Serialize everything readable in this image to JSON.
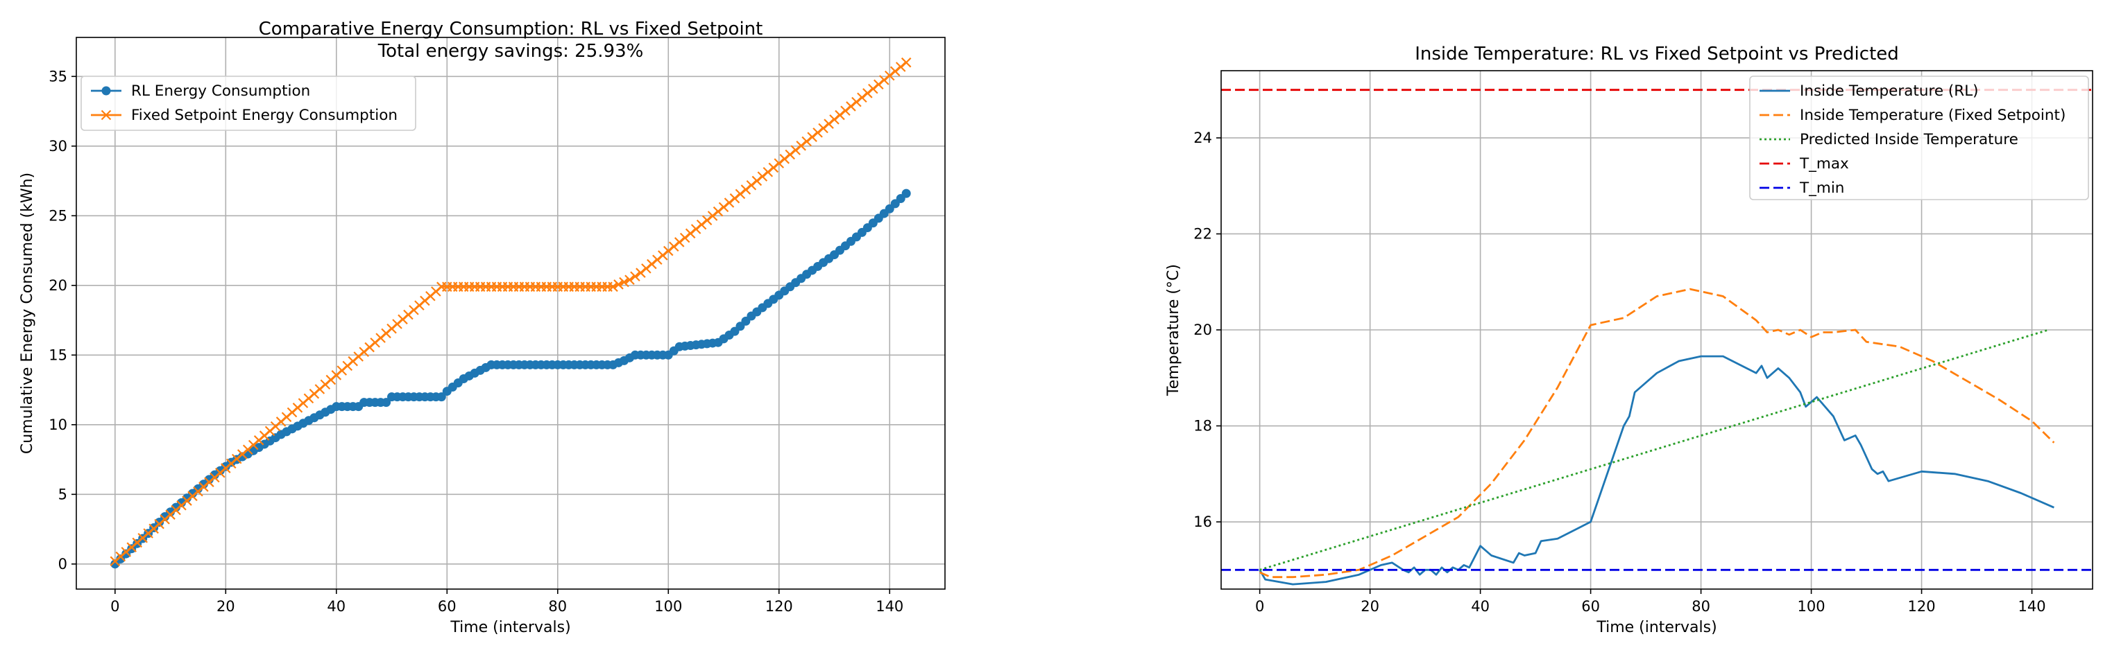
{
  "chart_data": [
    {
      "type": "line",
      "title": "Comparative Energy Consumption: RL vs Fixed Setpoint",
      "subtitle": "Total energy savings: 25.93%",
      "xlabel": "Time (intervals)",
      "ylabel": "Cumulative Energy Consumed (kWh)",
      "xlim": [
        -7,
        150
      ],
      "ylim": [
        -1.8,
        37.8
      ],
      "xticks": [
        0,
        20,
        40,
        60,
        80,
        100,
        120,
        140
      ],
      "yticks": [
        0,
        5,
        10,
        15,
        20,
        25,
        30,
        35
      ],
      "grid": true,
      "legend_position": "top-left",
      "series": [
        {
          "name": "RL Energy Consumption",
          "color": "#1f77b4",
          "marker": "circle",
          "x": [
            0,
            3,
            6,
            9,
            12,
            15,
            18,
            21,
            24,
            27,
            30,
            33,
            36,
            38,
            39,
            40,
            44,
            45,
            49,
            50,
            59,
            60,
            63,
            66,
            68,
            90,
            92,
            94,
            100,
            102,
            109,
            112,
            115,
            120,
            125,
            130,
            135,
            140,
            143
          ],
          "y": [
            0,
            1.1,
            2.2,
            3.4,
            4.4,
            5.4,
            6.4,
            7.3,
            7.9,
            8.6,
            9.3,
            9.9,
            10.5,
            10.9,
            11.1,
            11.3,
            11.3,
            11.6,
            11.6,
            12.0,
            12.0,
            12.4,
            13.3,
            13.9,
            14.3,
            14.3,
            14.6,
            15.0,
            15.0,
            15.6,
            15.9,
            16.7,
            17.8,
            19.3,
            20.8,
            22.2,
            23.8,
            25.5,
            26.6
          ]
        },
        {
          "name": "Fixed Setpoint Energy Consumption",
          "color": "#ff7f0e",
          "marker": "x",
          "x": [
            0,
            59,
            90,
            93,
            95,
            143
          ],
          "y": [
            0.2,
            19.9,
            19.9,
            20.4,
            20.9,
            36.0
          ]
        }
      ]
    },
    {
      "type": "line",
      "title": "Inside Temperature: RL vs Fixed Setpoint vs Predicted",
      "xlabel": "Time (intervals)",
      "ylabel": "Temperature (°C)",
      "xlim": [
        -7,
        151
      ],
      "ylim": [
        14.6,
        25.4
      ],
      "xticks": [
        0,
        20,
        40,
        60,
        80,
        100,
        120,
        140
      ],
      "yticks": [
        16,
        18,
        20,
        22,
        24
      ],
      "grid": true,
      "legend_position": "top-right",
      "series": [
        {
          "name": "Inside Temperature (RL)",
          "color": "#1f77b4",
          "style": "solid",
          "x": [
            0,
            1,
            6,
            12,
            18,
            22,
            24,
            26,
            27,
            28,
            29,
            30,
            31,
            32,
            33,
            34,
            35,
            36,
            37,
            38,
            40,
            42,
            46,
            47,
            48,
            50,
            51,
            54,
            60,
            66,
            67,
            68,
            72,
            76,
            80,
            84,
            90,
            91,
            92,
            94,
            96,
            98,
            99,
            100,
            101,
            104,
            106,
            108,
            109,
            111,
            112,
            113,
            114,
            120,
            126,
            132,
            138,
            144
          ],
          "y": [
            15.0,
            14.8,
            14.7,
            14.75,
            14.9,
            15.1,
            15.15,
            15.0,
            14.95,
            15.05,
            14.9,
            15.0,
            15.0,
            14.9,
            15.05,
            14.95,
            15.05,
            15.0,
            15.1,
            15.05,
            15.5,
            15.3,
            15.15,
            15.35,
            15.3,
            15.35,
            15.6,
            15.65,
            16.0,
            18.0,
            18.2,
            18.7,
            19.1,
            19.35,
            19.45,
            19.45,
            19.1,
            19.25,
            19.0,
            19.2,
            19.0,
            18.7,
            18.4,
            18.5,
            18.6,
            18.2,
            17.7,
            17.8,
            17.6,
            17.1,
            17.0,
            17.05,
            16.85,
            17.05,
            17.0,
            16.85,
            16.6,
            16.3
          ]
        },
        {
          "name": "Inside Temperature (Fixed Setpoint)",
          "color": "#ff7f0e",
          "style": "dashed",
          "x": [
            0,
            2,
            6,
            12,
            18,
            24,
            30,
            36,
            42,
            48,
            54,
            60,
            66,
            72,
            78,
            84,
            90,
            92,
            94,
            96,
            98,
            100,
            102,
            104,
            108,
            110,
            116,
            122,
            128,
            134,
            140,
            144
          ],
          "y": [
            14.95,
            14.85,
            14.85,
            14.9,
            15.0,
            15.3,
            15.7,
            16.1,
            16.8,
            17.7,
            18.8,
            20.1,
            20.25,
            20.7,
            20.85,
            20.7,
            20.2,
            19.95,
            20.0,
            19.9,
            20.0,
            19.85,
            19.95,
            19.95,
            20.0,
            19.75,
            19.65,
            19.35,
            18.95,
            18.55,
            18.1,
            17.65
          ]
        },
        {
          "name": "Predicted Inside Temperature",
          "color": "#2ca02c",
          "style": "dotted",
          "x": [
            0,
            143
          ],
          "y": [
            15.0,
            20.0
          ]
        },
        {
          "name": "T_max",
          "color": "#e50000",
          "style": "dashed",
          "x": [
            -7,
            151
          ],
          "y": [
            25.0,
            25.0
          ]
        },
        {
          "name": "T_min",
          "color": "#0000e5",
          "style": "dashed",
          "x": [
            -7,
            151
          ],
          "y": [
            15.0,
            15.0
          ]
        }
      ]
    }
  ]
}
